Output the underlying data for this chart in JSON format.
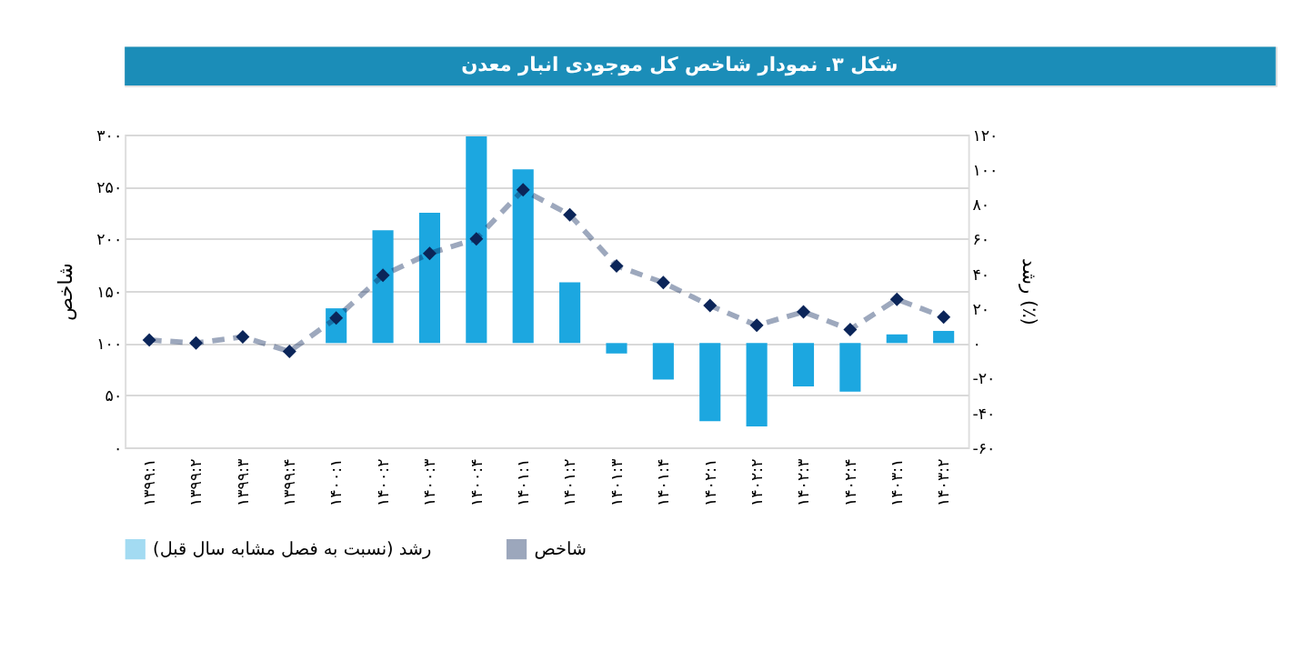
{
  "chart_data": {
    "type": "bar",
    "title": "شکل ۳. نمودار شاخص کل موجودی انبار معدن",
    "ylabel": "شاخص",
    "y2label": "رشد (٪)",
    "categories": [
      "۱۳۹۹:۱",
      "۱۳۹۹:۲",
      "۱۳۹۹:۳",
      "۱۳۹۹:۴",
      "۱۴۰۰:۱",
      "۱۴۰۰:۲",
      "۱۴۰۰:۳",
      "۱۴۰۰:۴",
      "۱۴۰۱:۱",
      "۱۴۰۱:۲",
      "۱۴۰۱:۳",
      "۱۴۰۱:۴",
      "۱۴۰۲:۱",
      "۱۴۰۲:۲",
      "۱۴۰۲:۳",
      "۱۴۰۲:۴",
      "۱۴۰۳:۱",
      "۱۴۰۳:۲"
    ],
    "series": [
      {
        "name": "رشد (نسبت به فصل مشابه سال قبل)",
        "axis": "y2",
        "color": "#1ca7e0",
        "values": [
          null,
          null,
          null,
          null,
          20,
          65,
          75,
          119,
          100,
          35,
          -6,
          -21,
          -45,
          -48,
          -25,
          -28,
          5,
          7
        ]
      },
      {
        "name": "شاخص",
        "type": "line",
        "color": "#0b2559",
        "line_style": "dashed",
        "marker": "diamond",
        "values": [
          103,
          100,
          106,
          92,
          124,
          165,
          186,
          200,
          247,
          223,
          174,
          158,
          136,
          117,
          130,
          113,
          142,
          125
        ]
      }
    ],
    "ylim": [
      0,
      300
    ],
    "yticks": [
      {
        "value": 0,
        "label": "۰"
      },
      {
        "value": 50,
        "label": "۵۰"
      },
      {
        "value": 100,
        "label": "۱۰۰"
      },
      {
        "value": 150,
        "label": "۱۵۰"
      },
      {
        "value": 200,
        "label": "۲۰۰"
      },
      {
        "value": 250,
        "label": "۲۵۰"
      },
      {
        "value": 300,
        "label": "۳۰۰"
      }
    ],
    "y2lim": [
      -60,
      120
    ],
    "y2ticks": [
      {
        "value": -60,
        "label": "-۶۰"
      },
      {
        "value": -40,
        "label": "-۴۰"
      },
      {
        "value": -20,
        "label": "-۲۰"
      },
      {
        "value": 0,
        "label": "۰"
      },
      {
        "value": 20,
        "label": "۲۰"
      },
      {
        "value": 40,
        "label": "۴۰"
      },
      {
        "value": 60,
        "label": "۶۰"
      },
      {
        "value": 80,
        "label": "۸۰"
      },
      {
        "value": 100,
        "label": "۱۰۰"
      },
      {
        "value": 120,
        "label": "۱۲۰"
      }
    ],
    "grid": "y",
    "legend": "bottom"
  }
}
